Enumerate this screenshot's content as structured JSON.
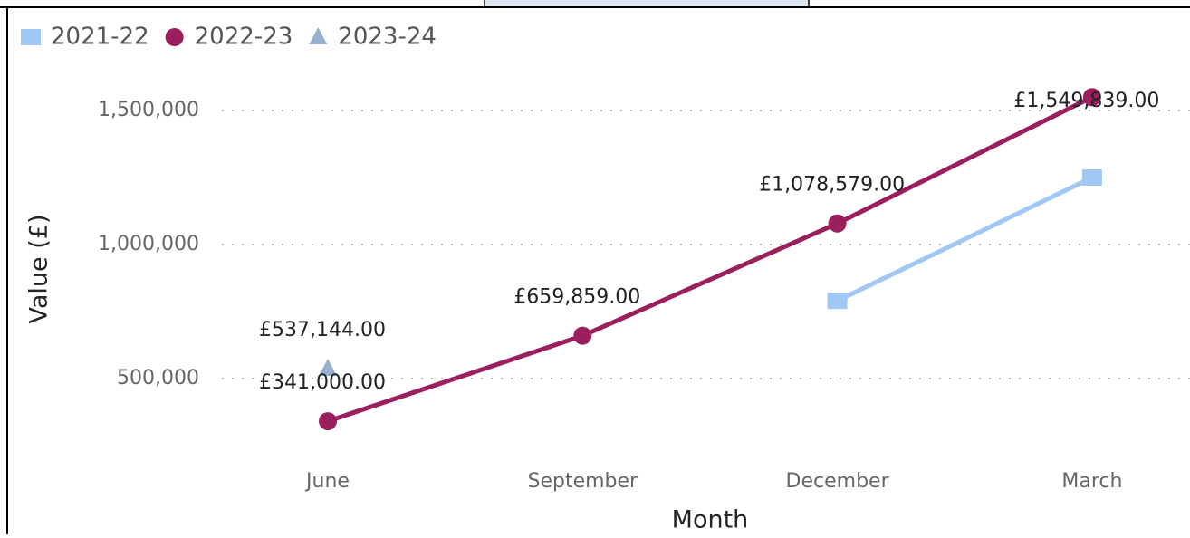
{
  "chart_data": {
    "type": "line",
    "x_label": "Month",
    "y_label": "Value (£)",
    "categories": [
      "June",
      "September",
      "December",
      "March"
    ],
    "series": [
      {
        "name": "2021-22",
        "color": "#9fc8f5",
        "marker": "square",
        "values": [
          null,
          null,
          790000,
          1250000
        ]
      },
      {
        "name": "2022-23",
        "color": "#9b1f5c",
        "marker": "circle",
        "values": [
          341000,
          659859,
          1078579,
          1549839
        ],
        "value_labels": [
          "£341,000.00",
          "£659,859.00",
          "£1,078,579.00",
          "£1,549,839.00"
        ]
      },
      {
        "name": "2023-24",
        "color": "#1a4f96",
        "marker": "triangle",
        "values": [
          537144,
          null,
          null,
          null
        ],
        "value_labels": [
          "£537,144.00",
          null,
          null,
          null
        ]
      }
    ],
    "ylim": [
      200000,
      1600000
    ],
    "yticks": [
      {
        "value": 500000,
        "label": "500,000"
      },
      {
        "value": 1000000,
        "label": "1,000,000"
      },
      {
        "value": 1500000,
        "label": "1,500,000"
      }
    ],
    "grid": true,
    "legend": "top-left"
  }
}
